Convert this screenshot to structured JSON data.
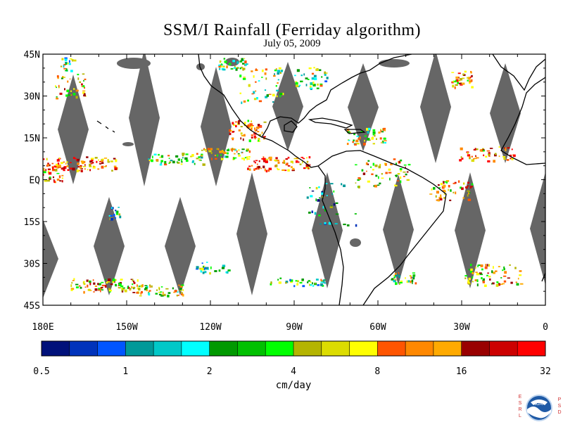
{
  "title": "SSM/I Rainfall (Ferriday algorithm)",
  "date": "July 05, 2009",
  "map": {
    "lon_range": [
      -180,
      0
    ],
    "lat_range": [
      -45,
      45
    ],
    "lat_ticks": [
      {
        "value": 45,
        "label": "45N"
      },
      {
        "value": 30,
        "label": "30N"
      },
      {
        "value": 15,
        "label": "15N"
      },
      {
        "value": 0,
        "label": "EQ"
      },
      {
        "value": -15,
        "label": "15S"
      },
      {
        "value": -30,
        "label": "30S"
      },
      {
        "value": -45,
        "label": "45S"
      }
    ],
    "lon_ticks": [
      {
        "value": -180,
        "label": "180E"
      },
      {
        "value": -150,
        "label": "150W"
      },
      {
        "value": -120,
        "label": "120W"
      },
      {
        "value": -90,
        "label": "90W"
      },
      {
        "value": -60,
        "label": "60W"
      },
      {
        "value": -30,
        "label": "30W"
      },
      {
        "value": 0,
        "label": "0"
      }
    ],
    "no_data_color": "#666666",
    "coast_color": "#000000"
  },
  "colorbar": {
    "units": "cm/day",
    "colors": [
      "#00117a",
      "#0033bb",
      "#0055ff",
      "#009999",
      "#00c8c8",
      "#00ffff",
      "#009900",
      "#00c000",
      "#00ff00",
      "#b4b400",
      "#dcdc00",
      "#ffff00",
      "#ff5500",
      "#ff8800",
      "#ffaa00",
      "#990000",
      "#cc0000",
      "#ff0000"
    ],
    "labels": [
      {
        "label": "0.5",
        "index": 0
      },
      {
        "label": "1",
        "index": 3
      },
      {
        "label": "2",
        "index": 6
      },
      {
        "label": "4",
        "index": 9
      },
      {
        "label": "8",
        "index": 12
      },
      {
        "label": "16",
        "index": 15
      },
      {
        "label": "32",
        "index": 18
      }
    ]
  },
  "logo": {
    "left_letters": "ESRL",
    "right_letters": "PSD",
    "center_text": "NOAA"
  }
}
